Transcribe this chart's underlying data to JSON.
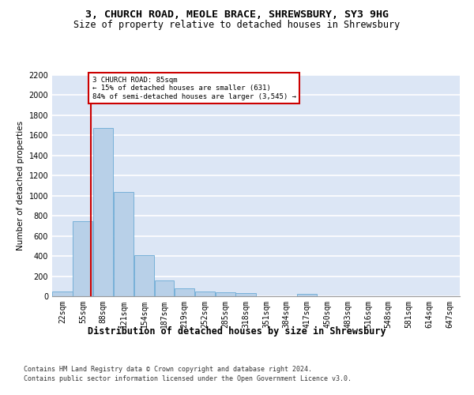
{
  "title_line1": "3, CHURCH ROAD, MEOLE BRACE, SHREWSBURY, SY3 9HG",
  "title_line2": "Size of property relative to detached houses in Shrewsbury",
  "xlabel": "Distribution of detached houses by size in Shrewsbury",
  "ylabel": "Number of detached properties",
  "footer_line1": "Contains HM Land Registry data © Crown copyright and database right 2024.",
  "footer_line2": "Contains public sector information licensed under the Open Government Licence v3.0.",
  "annotation_title": "3 CHURCH ROAD: 85sqm",
  "annotation_line1": "← 15% of detached houses are smaller (631)",
  "annotation_line2": "84% of semi-detached houses are larger (3,545) →",
  "bar_edges": [
    22,
    55,
    88,
    121,
    154,
    187,
    219,
    252,
    285,
    318,
    351,
    384,
    417,
    450,
    483,
    516,
    548,
    581,
    614,
    647,
    680
  ],
  "bar_values": [
    50,
    745,
    1670,
    1035,
    405,
    155,
    82,
    48,
    42,
    30,
    0,
    0,
    22,
    0,
    0,
    0,
    0,
    0,
    0,
    0
  ],
  "bar_color": "#b8d0e8",
  "bar_edgecolor": "#6aaad4",
  "vline_color": "#cc0000",
  "vline_x": 85,
  "annotation_box_color": "#cc0000",
  "background_color": "#dce6f5",
  "ylim": [
    0,
    2200
  ],
  "yticks": [
    0,
    200,
    400,
    600,
    800,
    1000,
    1200,
    1400,
    1600,
    1800,
    2000,
    2200
  ],
  "grid_color": "#ffffff",
  "title_fontsize": 9.5,
  "subtitle_fontsize": 8.5,
  "axis_label_fontsize": 7.5,
  "tick_fontsize": 7,
  "footer_fontsize": 6
}
